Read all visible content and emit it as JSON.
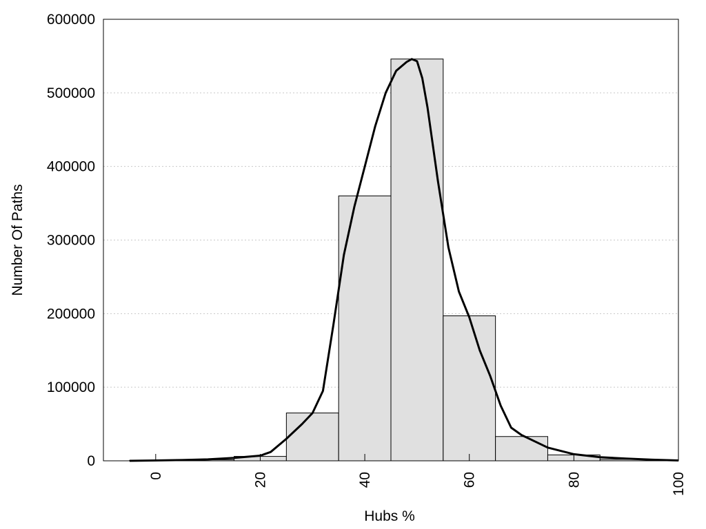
{
  "chart_data": {
    "type": "bar",
    "title": "",
    "xlabel": "Hubs %",
    "ylabel": "Number Of Paths",
    "xlim": [
      -10,
      100
    ],
    "ylim": [
      0,
      600000
    ],
    "x_ticks": [
      "0",
      "20",
      "40",
      "60",
      "80",
      "100"
    ],
    "y_ticks": [
      "0",
      "100000",
      "200000",
      "300000",
      "400000",
      "500000",
      "600000"
    ],
    "grid": "horizontal dotted",
    "bins": [
      {
        "x0": -5,
        "x1": 5,
        "value": 500
      },
      {
        "x0": 5,
        "x1": 15,
        "value": 1500
      },
      {
        "x0": 15,
        "x1": 25,
        "value": 6000
      },
      {
        "x0": 25,
        "x1": 35,
        "value": 65000
      },
      {
        "x0": 35,
        "x1": 45,
        "value": 360000
      },
      {
        "x0": 45,
        "x1": 55,
        "value": 546000
      },
      {
        "x0": 55,
        "x1": 65,
        "value": 197000
      },
      {
        "x0": 65,
        "x1": 75,
        "value": 33000
      },
      {
        "x0": 75,
        "x1": 85,
        "value": 8000
      },
      {
        "x0": 85,
        "x1": 95,
        "value": 2000
      }
    ],
    "curve": {
      "x": [
        -5,
        0,
        5,
        10,
        15,
        20,
        22,
        25,
        28,
        30,
        32,
        34,
        36,
        38,
        40,
        42,
        44,
        46,
        48,
        49,
        50,
        51,
        52,
        54,
        56,
        58,
        60,
        62,
        64,
        66,
        68,
        70,
        75,
        80,
        85,
        90,
        95,
        100
      ],
      "y": [
        0,
        500,
        1000,
        2000,
        4000,
        7000,
        12000,
        30000,
        50000,
        65000,
        95000,
        185000,
        280000,
        345000,
        400000,
        455000,
        500000,
        530000,
        542000,
        546000,
        543000,
        520000,
        480000,
        380000,
        290000,
        230000,
        195000,
        150000,
        115000,
        75000,
        45000,
        35000,
        18000,
        9000,
        5000,
        3000,
        1500,
        500
      ]
    }
  }
}
